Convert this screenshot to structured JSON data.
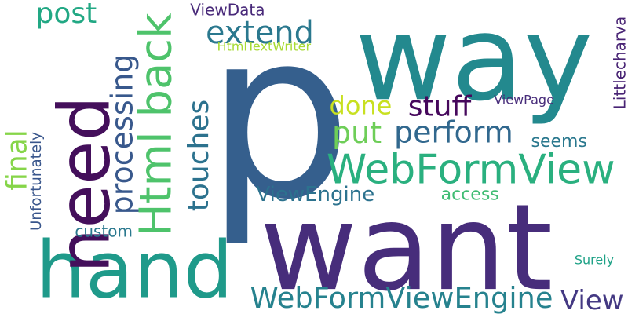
{
  "words": [
    {
      "text": "p",
      "color": "#355f8d",
      "orientation": "horizontal"
    },
    {
      "text": "way",
      "color": "#23898e",
      "orientation": "horizontal"
    },
    {
      "text": "want",
      "color": "#472d7b",
      "orientation": "horizontal"
    },
    {
      "text": "hand",
      "color": "#1f9a8a",
      "orientation": "horizontal"
    },
    {
      "text": "need",
      "color": "#440f5b",
      "orientation": "vertical"
    },
    {
      "text": "WebFormView",
      "color": "#2ab07f",
      "orientation": "horizontal"
    },
    {
      "text": "Html back",
      "color": "#4ec36b",
      "orientation": "vertical"
    },
    {
      "text": "WebFormViewEngine",
      "color": "#26828e",
      "orientation": "horizontal"
    },
    {
      "text": "processing",
      "color": "#38588c",
      "orientation": "vertical"
    },
    {
      "text": "perform",
      "color": "#31688e",
      "orientation": "horizontal"
    },
    {
      "text": "stuff",
      "color": "#46085c",
      "orientation": "horizontal"
    },
    {
      "text": "extend",
      "color": "#2a788e",
      "orientation": "horizontal"
    },
    {
      "text": "touches",
      "color": "#2c728e",
      "orientation": "vertical"
    },
    {
      "text": "put",
      "color": "#6ece58",
      "orientation": "horizontal"
    },
    {
      "text": "done",
      "color": "#c8e020",
      "orientation": "horizontal"
    },
    {
      "text": "post",
      "color": "#22a884",
      "orientation": "horizontal"
    },
    {
      "text": "final",
      "color": "#86d549",
      "orientation": "vertical"
    },
    {
      "text": "View",
      "color": "#443983",
      "orientation": "horizontal"
    },
    {
      "text": "ViewEngine",
      "color": "#2c728e",
      "orientation": "horizontal"
    },
    {
      "text": "access",
      "color": "#3fbc73",
      "orientation": "horizontal"
    },
    {
      "text": "seems",
      "color": "#2a788e",
      "orientation": "horizontal"
    },
    {
      "text": "custom",
      "color": "#2a788e",
      "orientation": "horizontal"
    },
    {
      "text": "Unfortunately",
      "color": "#39568c",
      "orientation": "vertical"
    },
    {
      "text": "ViewData",
      "color": "#482979",
      "orientation": "horizontal"
    },
    {
      "text": "Littlecharva",
      "color": "#482374",
      "orientation": "vertical"
    },
    {
      "text": "ViewPage",
      "color": "#472c7a",
      "orientation": "horizontal"
    },
    {
      "text": "HtmlTextWriter",
      "color": "#a8db34",
      "orientation": "horizontal"
    },
    {
      "text": "Surely",
      "color": "#1fa287",
      "orientation": "horizontal"
    }
  ]
}
